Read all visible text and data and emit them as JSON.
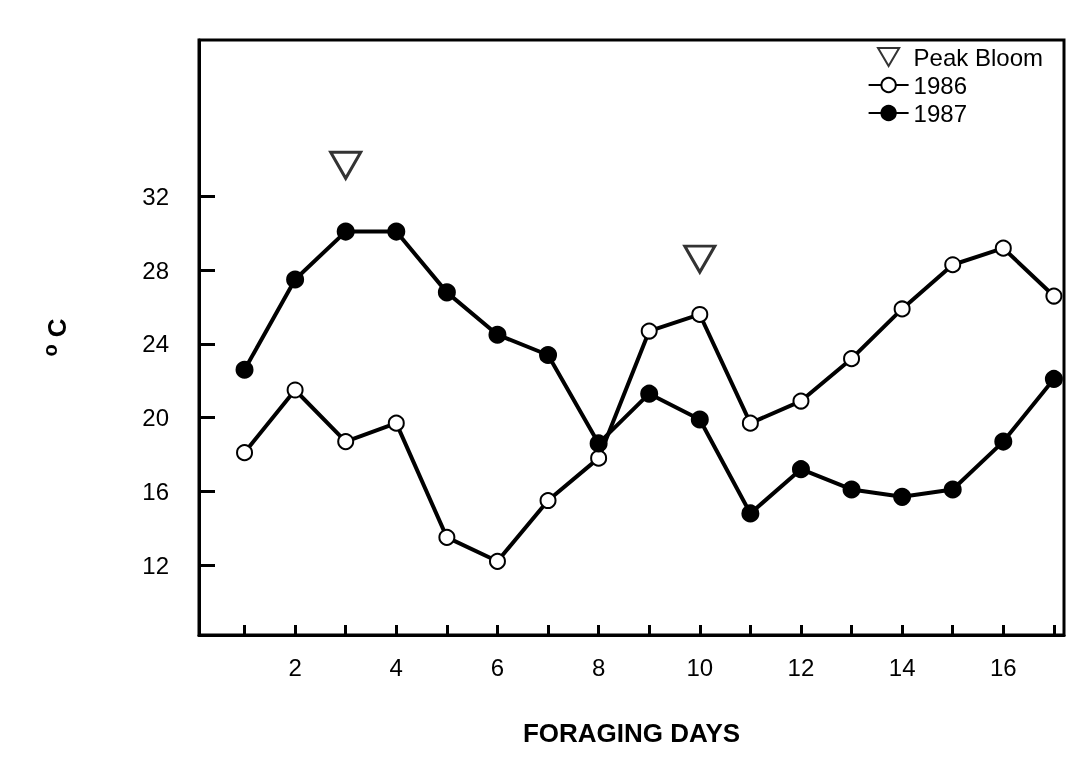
{
  "chart_data": {
    "type": "line",
    "xlabel": "FORAGING DAYS",
    "ylabel": "$^{o}$ C",
    "x": [
      1,
      2,
      3,
      4,
      5,
      6,
      7,
      8,
      9,
      10,
      11,
      12,
      13,
      14,
      15,
      16,
      17
    ],
    "series": [
      {
        "name": "Peak Bloom",
        "type": "scatter",
        "marker": "triangle",
        "color": "#000000",
        "x": [
          3,
          10
        ],
        "values": [
          33.7,
          28.6
        ]
      },
      {
        "name": "1986",
        "marker": "open circle",
        "color": "#000000",
        "values": [
          18.1,
          21.5,
          18.7,
          19.7,
          13.5,
          12.2,
          15.5,
          17.8,
          24.7,
          25.6,
          19.7,
          20.9,
          23.2,
          25.9,
          28.3,
          29.2,
          26.6
        ]
      },
      {
        "name": "1987",
        "marker": "circle",
        "color": "#000000",
        "values": [
          22.6,
          27.5,
          30.1,
          30.1,
          26.8,
          24.5,
          23.4,
          18.6,
          21.3,
          19.9,
          14.8,
          17.2,
          16.1,
          15.7,
          16.1,
          18.7,
          22.1
        ]
      }
    ],
    "xlim": [
      0.1,
      17.2
    ],
    "xticks": [
      {
        "value": 1,
        "label": null
      },
      2,
      {
        "value": 3,
        "label": null
      },
      4,
      {
        "value": 5,
        "label": null
      },
      6,
      {
        "value": 7,
        "label": null
      },
      8,
      {
        "value": 9,
        "label": null
      },
      10,
      {
        "value": 11,
        "label": null
      },
      12,
      {
        "value": 13,
        "label": null
      },
      14,
      {
        "value": 15,
        "label": null
      },
      16,
      {
        "value": 17,
        "label": null
      }
    ],
    "ylim": [
      8.2,
      40.5
    ],
    "yticks": [
      12,
      16,
      20,
      24,
      28,
      32
    ],
    "grid": false,
    "legend": "top right",
    "line_style": "solid"
  }
}
